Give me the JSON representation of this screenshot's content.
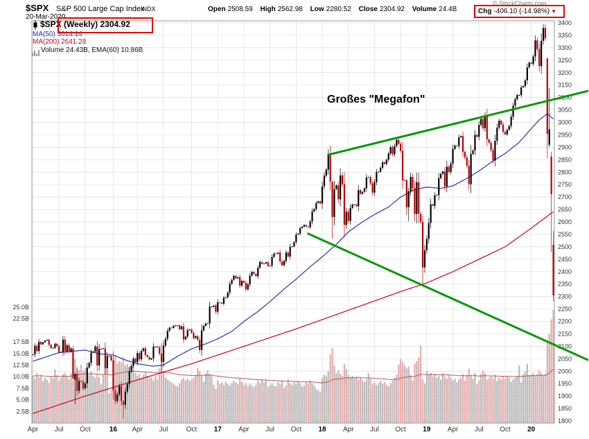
{
  "header": {
    "symbol": "$SPX",
    "name": "S&P 500 Large Cap Index",
    "exchange": "INDX",
    "date": "20-Mar-2020",
    "copyright": "© StockCharts.com",
    "quote": {
      "open_label": "Open",
      "open": "2508.59",
      "high_label": "High",
      "high": "2562.98",
      "low_label": "Low",
      "low": "2280.52",
      "close_label": "Close",
      "close": "2304.92",
      "volume_label": "Volume",
      "volume": "24.4B",
      "chg_label": "Chg",
      "chg": "-406.10 (-14.98%)",
      "chg_arrow": "▼"
    }
  },
  "legend": {
    "series": "$SPX (Weekly) 2304.92",
    "ma50": "MA(50) 3014.14",
    "ma200": "MA(200) 2641.28",
    "volume": "Volume 24.43B, EMA(60) 10.86B"
  },
  "annotation": {
    "megaphone_label": "Großes \"Megafon\""
  },
  "chart_data": {
    "type": "candlestick",
    "title": "$SPX S&P 500 Large Cap Index (Weekly)",
    "price_axis": {
      "side": "right",
      "min": 1800,
      "max": 3400,
      "step": 50
    },
    "volume_axis": {
      "labels": [
        "25.0B",
        "22.5B",
        "17.5B",
        "15.0B",
        "12.5B",
        "10.0B",
        "7.5B",
        "5.0B",
        "2.5B"
      ],
      "values": [
        25,
        22.5,
        17.5,
        15,
        12.5,
        10,
        7.5,
        5,
        2.5
      ],
      "max_b": 25
    },
    "x_ticks": [
      {
        "label": "Apr",
        "index": 0,
        "year": false
      },
      {
        "label": "Jul",
        "index": 13,
        "year": false
      },
      {
        "label": "Oct",
        "index": 26,
        "year": false
      },
      {
        "label": "16",
        "index": 40,
        "year": true
      },
      {
        "label": "Apr",
        "index": 52,
        "year": false
      },
      {
        "label": "Jul",
        "index": 65,
        "year": false
      },
      {
        "label": "Oct",
        "index": 79,
        "year": false
      },
      {
        "label": "17",
        "index": 92,
        "year": true
      },
      {
        "label": "Apr",
        "index": 105,
        "year": false
      },
      {
        "label": "Jul",
        "index": 118,
        "year": false
      },
      {
        "label": "Oct",
        "index": 131,
        "year": false
      },
      {
        "label": "18",
        "index": 144,
        "year": true
      },
      {
        "label": "Apr",
        "index": 157,
        "year": false
      },
      {
        "label": "Jul",
        "index": 170,
        "year": false
      },
      {
        "label": "Oct",
        "index": 183,
        "year": false
      },
      {
        "label": "19",
        "index": 196,
        "year": true
      },
      {
        "label": "Apr",
        "index": 209,
        "year": false
      },
      {
        "label": "Jul",
        "index": 222,
        "year": false
      },
      {
        "label": "Oct",
        "index": 235,
        "year": false
      },
      {
        "label": "20",
        "index": 248,
        "year": true
      }
    ],
    "closes": [
      2067,
      2102,
      2081,
      2118,
      2108,
      2116,
      2123,
      2126,
      2107,
      2093,
      2094,
      2110,
      2101,
      2077,
      2077,
      2127,
      2080,
      2104,
      2078,
      2092,
      1971,
      1989,
      1921,
      1961,
      1958,
      1931,
      1951,
      2015,
      2033,
      2075,
      2079,
      2099,
      2023,
      2089,
      2090,
      2092,
      2012,
      2061,
      2061,
      2044,
      1922,
      1880,
      1907,
      1940,
      1880,
      1865,
      1918,
      1948,
      2000,
      2022,
      2050,
      2036,
      2073,
      2048,
      2081,
      2092,
      2065,
      2057,
      2047,
      2052,
      2099,
      2099,
      2096,
      2071,
      2037,
      2103,
      2130,
      2162,
      2175,
      2174,
      2183,
      2184,
      2184,
      2169,
      2180,
      2128,
      2139,
      2165,
      2168,
      2154,
      2133,
      2141,
      2126,
      2085,
      2164,
      2182,
      2192,
      2192,
      2260,
      2258,
      2264,
      2239,
      2277,
      2275,
      2271,
      2295,
      2297,
      2316,
      2351,
      2367,
      2383,
      2373,
      2378,
      2344,
      2363,
      2356,
      2329,
      2349,
      2384,
      2399,
      2391,
      2382,
      2416,
      2439,
      2432,
      2433,
      2438,
      2423,
      2425,
      2459,
      2473,
      2472,
      2477,
      2441,
      2426,
      2443,
      2477,
      2461,
      2500,
      2502,
      2519,
      2549,
      2553,
      2575,
      2581,
      2588,
      2582,
      2579,
      2602,
      2642,
      2652,
      2676,
      2683,
      2674,
      2743,
      2786,
      2810,
      2873,
      2762,
      2620,
      2732,
      2747,
      2691,
      2787,
      2752,
      2588,
      2641,
      2604,
      2656,
      2670,
      2670,
      2663,
      2728,
      2713,
      2721,
      2735,
      2779,
      2780,
      2755,
      2718,
      2760,
      2801,
      2802,
      2818,
      2840,
      2833,
      2850,
      2875,
      2901,
      2872,
      2905,
      2930,
      2914,
      2886,
      2767,
      2768,
      2659,
      2723,
      2781,
      2736,
      2632,
      2760,
      2633,
      2600,
      2417,
      2486,
      2532,
      2596,
      2671,
      2665,
      2707,
      2708,
      2776,
      2793,
      2803,
      2743,
      2822,
      2801,
      2834,
      2893,
      2907,
      2905,
      2940,
      2945,
      2881,
      2859,
      2826,
      2752,
      2873,
      2887,
      2950,
      2942,
      2990,
      3014,
      2977,
      3026,
      2932,
      2918,
      2889,
      2847,
      2926,
      2979,
      3007,
      2992,
      2962,
      2952,
      2970,
      2986,
      3023,
      3067,
      3093,
      3110,
      3110,
      3141,
      3146,
      3169,
      3221,
      3240,
      3235,
      3265,
      3330,
      3295,
      3226,
      3328,
      3380,
      3338,
      2954,
      2972,
      2711,
      2305
    ],
    "volumes": [
      10.2,
      9.6,
      10.8,
      9.9,
      10.4,
      9.1,
      9.8,
      9.4,
      8.7,
      10.1,
      9.7,
      11.6,
      10.3,
      9.2,
      9.8,
      10.6,
      10.9,
      10.1,
      9.4,
      10.8,
      15.2,
      13.8,
      12.1,
      11.4,
      12.6,
      11.2,
      11.8,
      10.9,
      10.4,
      11.1,
      10.2,
      9.8,
      10.6,
      9.9,
      8.3,
      10.4,
      12.8,
      11.2,
      6.4,
      7.1,
      13.6,
      14.8,
      12.9,
      13.4,
      13.1,
      14.2,
      12.4,
      12.8,
      12.2,
      11.6,
      12.9,
      10.8,
      10.2,
      10.6,
      9.8,
      10.4,
      10.9,
      10.2,
      9.6,
      9.9,
      9.2,
      10.1,
      9.4,
      11.8,
      14.6,
      11.2,
      9.8,
      9.4,
      9.1,
      8.8,
      8.4,
      8.1,
      7.9,
      8.6,
      9.4,
      9.8,
      9.2,
      9.6,
      9.1,
      9.4,
      9.8,
      10.2,
      11.9,
      11.2,
      10.4,
      8.9,
      10.8,
      11.4,
      10.6,
      10.1,
      8.2,
      7.4,
      9.2,
      8.4,
      8.8,
      8.2,
      8.9,
      8.4,
      8.1,
      8.6,
      9.1,
      8.8,
      8.4,
      9.6,
      8.9,
      8.2,
      8.6,
      7.9,
      8.4,
      8.1,
      7.8,
      8.3,
      9.1,
      8.6,
      9.4,
      8.8,
      9.2,
      7.8,
      8.2,
      8.6,
      8.1,
      7.9,
      8.8,
      8.4,
      9.2,
      7.6,
      8.1,
      9.4,
      8.6,
      8.2,
      8.8,
      8.4,
      9.1,
      8.6,
      7.9,
      8.2,
      8.8,
      8.4,
      9.2,
      8.6,
      8.1,
      7.4,
      7.1,
      6.8,
      9.8,
      10.4,
      10.1,
      11.2,
      14.8,
      16.2,
      12.4,
      10.8,
      11.4,
      10.6,
      10.2,
      12.8,
      11.6,
      10.4,
      9.8,
      10.2,
      9.6,
      10.1,
      9.4,
      9.8,
      9.2,
      8.8,
      9.4,
      10.8,
      9.6,
      8.4,
      8.8,
      8.2,
      8.6,
      9.1,
      8.4,
      8.8,
      8.2,
      7.9,
      8.6,
      9.2,
      9.8,
      10.4,
      12.6,
      13.8,
      13.2,
      12.4,
      11.8,
      12.2,
      10.4,
      9.2,
      12.8,
      13.4,
      14.2,
      16.8,
      9.4,
      8.6,
      11.2,
      10.4,
      10.8,
      10.1,
      10.6,
      9.8,
      10.2,
      9.4,
      10.8,
      10.1,
      9.6,
      10.4,
      9.8,
      9.2,
      9.6,
      8.8,
      9.4,
      9.8,
      10.6,
      9.2,
      10.4,
      11.8,
      10.2,
      9.6,
      10.8,
      8.4,
      9.2,
      10.6,
      11.4,
      10.8,
      9.4,
      9.8,
      10.2,
      9.6,
      10.4,
      9.1,
      9.8,
      9.4,
      10.1,
      9.6,
      10.2,
      9.8,
      8.9,
      9.4,
      9.8,
      10.2,
      12.4,
      8.8,
      10.6,
      11.2,
      12.8,
      10.4,
      10.4,
      10.8,
      10.2,
      10.6,
      11.4,
      10.8,
      10.2,
      10.6,
      17.8,
      19.2,
      22.4,
      24.4
    ],
    "ohlc_overrides": {
      "20": [
        2091,
        2102,
        1971,
        1971
      ],
      "21": [
        1965,
        1994,
        1867,
        1989
      ],
      "45": [
        1880,
        1881,
        1810,
        1865
      ],
      "64": [
        2071,
        2113,
        1992,
        2037
      ],
      "149": [
        2762,
        2763,
        2533,
        2620
      ],
      "186": [
        2768,
        2772,
        2628,
        2659
      ],
      "187": [
        2659,
        2736,
        2603,
        2723
      ],
      "194": [
        2600,
        2626,
        2346,
        2417
      ],
      "255": [
        3380,
        3394,
        3329,
        3338
      ],
      "256": [
        3257,
        3260,
        2856,
        2954
      ],
      "257": [
        2910,
        3137,
        2901,
        2972
      ],
      "258": [
        2863,
        2882,
        2478,
        2711
      ],
      "259": [
        2508.59,
        2562.98,
        2280.52,
        2304.92
      ]
    },
    "ma50": {
      "final": 3014.14,
      "anchors": [
        [
          0,
          2040
        ],
        [
          13,
          2075
        ],
        [
          26,
          2085
        ],
        [
          33,
          2070
        ],
        [
          40,
          2065
        ],
        [
          46,
          2045
        ],
        [
          52,
          2030
        ],
        [
          60,
          2020
        ],
        [
          65,
          2025
        ],
        [
          72,
          2060
        ],
        [
          79,
          2090
        ],
        [
          86,
          2110
        ],
        [
          92,
          2130
        ],
        [
          99,
          2160
        ],
        [
          105,
          2200
        ],
        [
          112,
          2240
        ],
        [
          118,
          2280
        ],
        [
          125,
          2330
        ],
        [
          131,
          2370
        ],
        [
          138,
          2420
        ],
        [
          144,
          2460
        ],
        [
          151,
          2510
        ],
        [
          157,
          2560
        ],
        [
          164,
          2600
        ],
        [
          170,
          2630
        ],
        [
          177,
          2660
        ],
        [
          183,
          2700
        ],
        [
          190,
          2730
        ],
        [
          196,
          2740
        ],
        [
          203,
          2735
        ],
        [
          209,
          2745
        ],
        [
          216,
          2775
        ],
        [
          222,
          2805
        ],
        [
          229,
          2845
        ],
        [
          235,
          2875
        ],
        [
          242,
          2920
        ],
        [
          248,
          2975
        ],
        [
          252,
          3010
        ],
        [
          256,
          3035
        ],
        [
          259,
          3014.14
        ]
      ]
    },
    "ma200": {
      "final": 2641.28,
      "anchors": [
        [
          0,
          1830
        ],
        [
          26,
          1900
        ],
        [
          52,
          1965
        ],
        [
          79,
          2030
        ],
        [
          105,
          2100
        ],
        [
          131,
          2170
        ],
        [
          157,
          2245
        ],
        [
          183,
          2320
        ],
        [
          196,
          2355
        ],
        [
          209,
          2400
        ],
        [
          222,
          2450
        ],
        [
          235,
          2500
        ],
        [
          248,
          2575
        ],
        [
          259,
          2641.28
        ]
      ]
    },
    "volume_ema": {
      "period": 60,
      "final_b": 10.86
    },
    "trendlines": [
      {
        "name": "megaphone-upper",
        "from": [
          147,
          2870
        ],
        "to": [
          276,
          3126
        ]
      },
      {
        "name": "megaphone-lower",
        "from": [
          137,
          2553
        ],
        "to": [
          276,
          2046
        ]
      }
    ],
    "colors": {
      "up": "#000000",
      "down": "#bb0000",
      "vol_up": "#b9b9b9",
      "vol_down": "#eaabab",
      "ma50": "#2233bb",
      "ma200": "#cc0022",
      "vol_ema": "#bb5555",
      "trend": "#009900",
      "grid": "#dedede",
      "border": "#999999",
      "annotation_red": "#e60000"
    }
  }
}
